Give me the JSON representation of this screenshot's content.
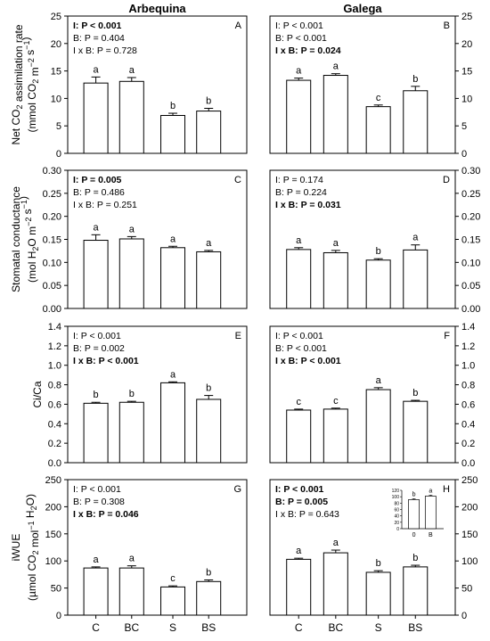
{
  "columns": [
    "Arbequina",
    "Galega"
  ],
  "categories": [
    "C",
    "BC",
    "S",
    "BS"
  ],
  "row_labels": [
    {
      "lines": [
        "Net CO2 assimilation rate",
        "(mmol CO2 m-2 s-1)"
      ]
    },
    {
      "lines": [
        "Stomatal conductance",
        "(mol H2O m-2 s-1)"
      ]
    },
    {
      "lines": [
        "Ci/Ca"
      ]
    },
    {
      "lines": [
        "iWUE",
        "(µmol CO2 mol-1 H2O)"
      ]
    }
  ],
  "chart_data": [
    {
      "type": "bar",
      "panel": "A",
      "column": "Arbequina",
      "ylim": [
        0,
        25
      ],
      "yticks": [
        0,
        5,
        10,
        15,
        20,
        25
      ],
      "categories": [
        "C",
        "BC",
        "S",
        "BS"
      ],
      "values": [
        12.8,
        13.1,
        6.9,
        7.7
      ],
      "errors": [
        1.1,
        0.7,
        0.4,
        0.5
      ],
      "letters": [
        "a",
        "a",
        "b",
        "b"
      ],
      "stats": [
        {
          "text": "I: P < 0.001",
          "bold": true
        },
        {
          "text": "B: P = 0.404",
          "bold": false
        },
        {
          "text": "I x B: P = 0.728",
          "bold": false
        }
      ]
    },
    {
      "type": "bar",
      "panel": "B",
      "column": "Galega",
      "ylim": [
        0,
        25
      ],
      "yticks": [
        0,
        5,
        10,
        15,
        20,
        25
      ],
      "categories": [
        "C",
        "BC",
        "S",
        "BS"
      ],
      "values": [
        13.3,
        14.2,
        8.5,
        11.4
      ],
      "errors": [
        0.4,
        0.3,
        0.3,
        0.8
      ],
      "letters": [
        "a",
        "a",
        "c",
        "b"
      ],
      "stats": [
        {
          "text": "I: P < 0.001",
          "bold": false
        },
        {
          "text": "B: P < 0.001",
          "bold": false
        },
        {
          "text": "I x B: P = 0.024",
          "bold": true
        }
      ]
    },
    {
      "type": "bar",
      "panel": "C",
      "column": "Arbequina",
      "ylim": [
        0,
        0.3
      ],
      "yticks": [
        0,
        0.05,
        0.1,
        0.15,
        0.2,
        0.25,
        0.3
      ],
      "categories": [
        "C",
        "BC",
        "S",
        "BS"
      ],
      "values": [
        0.148,
        0.151,
        0.132,
        0.123
      ],
      "errors": [
        0.012,
        0.005,
        0.003,
        0.003
      ],
      "letters": [
        "a",
        "a",
        "a",
        "a"
      ],
      "stats": [
        {
          "text": "I: P = 0.005",
          "bold": true
        },
        {
          "text": "B: P = 0.486",
          "bold": false
        },
        {
          "text": "I x B: P = 0.251",
          "bold": false
        }
      ]
    },
    {
      "type": "bar",
      "panel": "D",
      "column": "Galega",
      "ylim": [
        0,
        0.3
      ],
      "yticks": [
        0,
        0.05,
        0.1,
        0.15,
        0.2,
        0.25,
        0.3
      ],
      "categories": [
        "C",
        "BC",
        "S",
        "BS"
      ],
      "values": [
        0.128,
        0.121,
        0.105,
        0.127
      ],
      "errors": [
        0.004,
        0.005,
        0.003,
        0.011
      ],
      "letters": [
        "a",
        "a",
        "b",
        "a"
      ],
      "stats": [
        {
          "text": "I: P = 0.174",
          "bold": false
        },
        {
          "text": "B: P = 0.224",
          "bold": false
        },
        {
          "text": "I x B: P = 0.031",
          "bold": true
        }
      ]
    },
    {
      "type": "bar",
      "panel": "E",
      "column": "Arbequina",
      "ylim": [
        0,
        1.4
      ],
      "yticks": [
        0,
        0.2,
        0.4,
        0.6,
        0.8,
        1.0,
        1.2,
        1.4
      ],
      "categories": [
        "C",
        "BC",
        "S",
        "BS"
      ],
      "values": [
        0.61,
        0.62,
        0.82,
        0.65
      ],
      "errors": [
        0.01,
        0.01,
        0.01,
        0.04
      ],
      "letters": [
        "b",
        "b",
        "a",
        "b"
      ],
      "stats": [
        {
          "text": "I: P < 0.001",
          "bold": false
        },
        {
          "text": "B: P = 0.002",
          "bold": false
        },
        {
          "text": "I x B: P < 0.001",
          "bold": true
        }
      ]
    },
    {
      "type": "bar",
      "panel": "F",
      "column": "Galega",
      "ylim": [
        0,
        1.4
      ],
      "yticks": [
        0,
        0.2,
        0.4,
        0.6,
        0.8,
        1.0,
        1.2,
        1.4
      ],
      "categories": [
        "C",
        "BC",
        "S",
        "BS"
      ],
      "values": [
        0.54,
        0.55,
        0.75,
        0.63
      ],
      "errors": [
        0.01,
        0.01,
        0.02,
        0.01
      ],
      "letters": [
        "c",
        "c",
        "a",
        "b"
      ],
      "stats": [
        {
          "text": "I: P < 0.001",
          "bold": false
        },
        {
          "text": "B: P < 0.001",
          "bold": false
        },
        {
          "text": "I x B: P < 0.001",
          "bold": true
        }
      ]
    },
    {
      "type": "bar",
      "panel": "G",
      "column": "Arbequina",
      "ylim": [
        0,
        250
      ],
      "yticks": [
        0,
        50,
        100,
        150,
        200,
        250
      ],
      "categories": [
        "C",
        "BC",
        "S",
        "BS"
      ],
      "values": [
        87,
        87,
        52,
        62
      ],
      "errors": [
        2,
        4,
        2,
        3
      ],
      "letters": [
        "a",
        "a",
        "c",
        "b"
      ],
      "stats": [
        {
          "text": "I: P < 0.001",
          "bold": false
        },
        {
          "text": "B: P = 0.308",
          "bold": false
        },
        {
          "text": "I x B: P = 0.046",
          "bold": true
        }
      ]
    },
    {
      "type": "bar",
      "panel": "H",
      "column": "Galega",
      "ylim": [
        0,
        250
      ],
      "yticks": [
        0,
        50,
        100,
        150,
        200,
        250
      ],
      "categories": [
        "C",
        "BC",
        "S",
        "BS"
      ],
      "values": [
        103,
        115,
        79,
        89
      ],
      "errors": [
        2,
        5,
        3,
        3
      ],
      "letters": [
        "a",
        "a",
        "b",
        "b"
      ],
      "stats": [
        {
          "text": "I: P < 0.001",
          "bold": true
        },
        {
          "text": "B: P = 0.005",
          "bold": true
        },
        {
          "text": "I x B: P = 0.643",
          "bold": false
        }
      ],
      "inset": {
        "type": "bar",
        "categories": [
          "0",
          "B"
        ],
        "values": [
          91,
          102
        ],
        "errors": [
          3,
          3
        ],
        "letters": [
          "b",
          "a"
        ],
        "ylim": [
          0,
          120
        ],
        "yticks": [
          0,
          20,
          40,
          60,
          80,
          100,
          120
        ]
      }
    }
  ]
}
